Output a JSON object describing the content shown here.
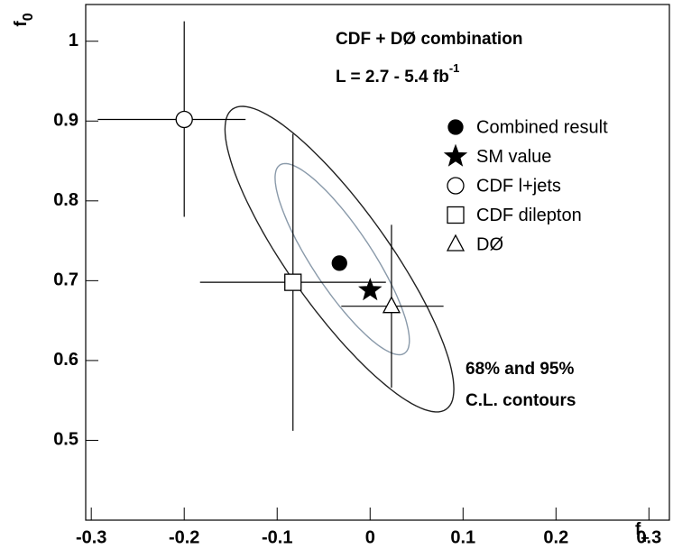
{
  "chart_data": {
    "type": "scatter",
    "title": "CDF + DØ combination",
    "lumi": "L = 2.7 - 5.4 fb",
    "lumi_sup": "-1",
    "annotations": [
      "68% and 95%",
      "C.L. contours"
    ],
    "x_label": "f",
    "x_label_sub": "+",
    "y_label": "f",
    "y_label_sub": "0",
    "xlim": [
      -0.306,
      0.322
    ],
    "xticks": [
      -0.3,
      -0.2,
      -0.1,
      0,
      0.1,
      0.2,
      0.3
    ],
    "ylim": [
      0.4,
      1.046
    ],
    "yticks": [
      0.5,
      0.6,
      0.7,
      0.8,
      0.9,
      1
    ],
    "contours": [
      {
        "color": "#222222",
        "center": [
          -0.033,
          0.727
        ],
        "a": [
          0.115,
          -0.188
        ],
        "b": [
          0.044,
          0.036
        ]
      },
      {
        "color": "#8a9aaa",
        "center": [
          -0.03,
          0.727
        ],
        "a": [
          0.067,
          -0.118
        ],
        "b": [
          0.027,
          0.0205
        ]
      }
    ],
    "series": [
      {
        "name": "Combined result",
        "marker": "filled-circle",
        "x": -0.033,
        "y": 0.722
      },
      {
        "name": "SM value",
        "marker": "star",
        "x": 0,
        "y": 0.688
      },
      {
        "name": "CDF l+jets",
        "marker": "open-circle",
        "x": -0.2,
        "y": 0.902,
        "xerr": [
          0.093,
          0.066
        ],
        "yerr": [
          0.122,
          0.123
        ]
      },
      {
        "name": "CDF dilepton",
        "marker": "square",
        "x": -0.083,
        "y": 0.698,
        "xerr": [
          0.1,
          0.1
        ],
        "yerr": [
          0.186,
          0.186
        ]
      },
      {
        "name": "DØ",
        "marker": "triangle",
        "x": 0.023,
        "y": 0.668,
        "xerr": [
          0.054,
          0.056
        ],
        "yerr": [
          0.102,
          0.102
        ]
      }
    ]
  }
}
